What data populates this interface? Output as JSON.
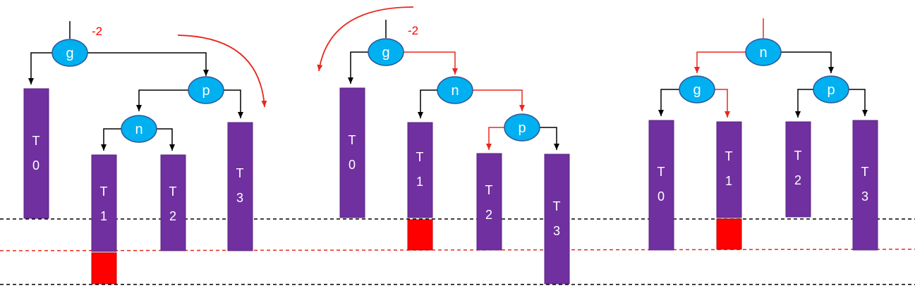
{
  "diagrams": [
    {
      "balance": "-2",
      "nodes": {
        "g": "g",
        "p": "p",
        "n": "n"
      },
      "trees": {
        "t0": [
          "T",
          "0"
        ],
        "t1": [
          "T",
          "1"
        ],
        "t2": [
          "T",
          "2"
        ],
        "t3": [
          "T",
          "3"
        ]
      }
    },
    {
      "balance": "-2",
      "nodes": {
        "g": "g",
        "n": "n",
        "p": "p"
      },
      "trees": {
        "t0": [
          "T",
          "0"
        ],
        "t1": [
          "T",
          "1"
        ],
        "t2": [
          "T",
          "2"
        ],
        "t3": [
          "T",
          "3"
        ]
      }
    },
    {
      "nodes": {
        "n": "n",
        "g": "g",
        "p": "p"
      },
      "trees": {
        "t0": [
          "T",
          "0"
        ],
        "t1": [
          "T",
          "1"
        ],
        "t2": [
          "T",
          "2"
        ],
        "t3": [
          "T",
          "3"
        ]
      }
    }
  ],
  "colors": {
    "node_fill": "#00b0f0",
    "node_stroke": "#2f5597",
    "subtree_fill": "#7030a0",
    "subtree_stroke": "#5a2682",
    "overflow_fill": "#ff0000",
    "highlight": "#e8281e",
    "baseline": "#000000",
    "overflow_baseline": "#e8281e"
  }
}
